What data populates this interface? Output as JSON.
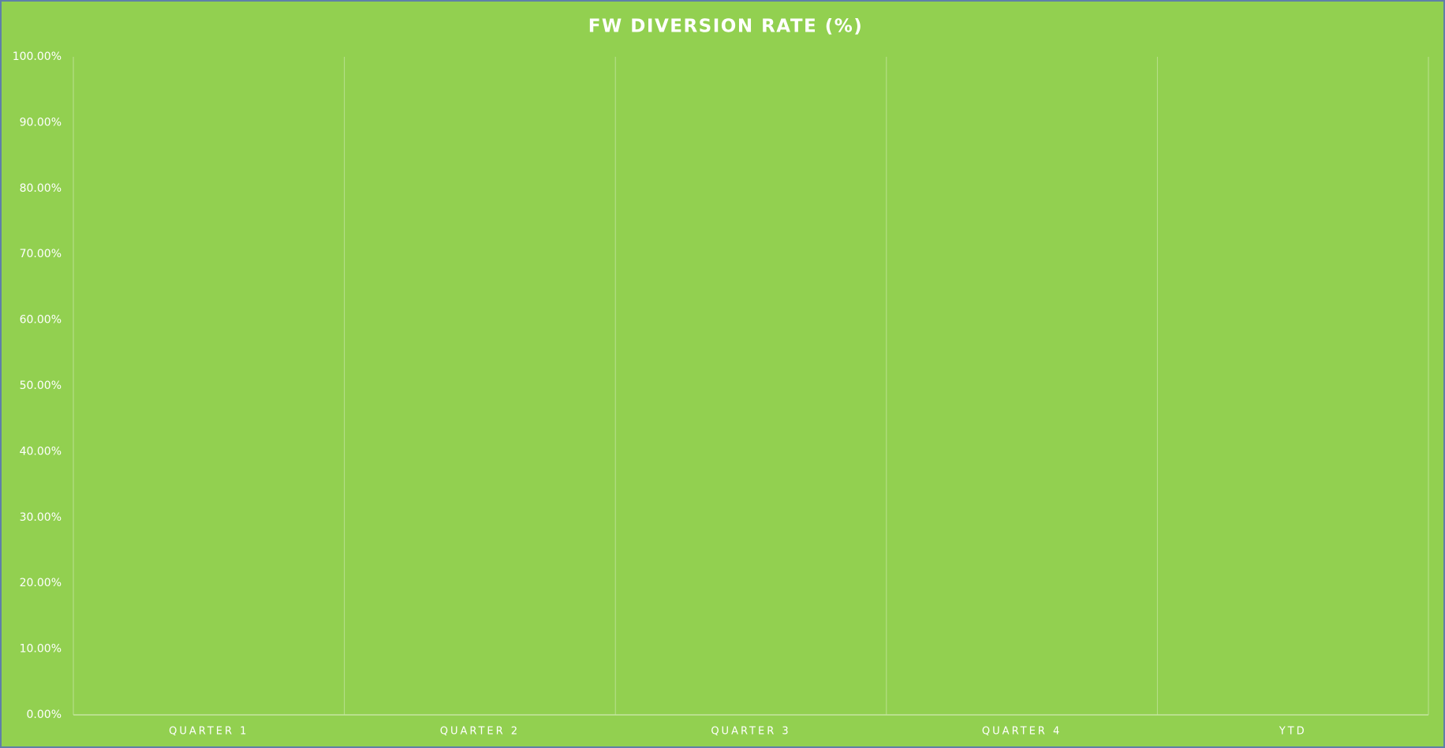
{
  "chart_data": {
    "type": "bar",
    "title": "FW DIVERSION RATE (%)",
    "categories": [
      "QUARTER 1",
      "QUARTER 2",
      "QUARTER 3",
      "QUARTER 4",
      "YTD"
    ],
    "ylim": [
      0,
      100
    ],
    "yticks": [
      {
        "value": 0,
        "label": "0.00%"
      },
      {
        "value": 10,
        "label": "10.00%"
      },
      {
        "value": 20,
        "label": "20.00%"
      },
      {
        "value": 30,
        "label": "30.00%"
      },
      {
        "value": 40,
        "label": "40.00%"
      },
      {
        "value": 50,
        "label": "50.00%"
      },
      {
        "value": 60,
        "label": "60.00%"
      },
      {
        "value": 70,
        "label": "70.00%"
      },
      {
        "value": 80,
        "label": "80.00%"
      },
      {
        "value": 90,
        "label": "90.00%"
      },
      {
        "value": 100,
        "label": "100.00%"
      }
    ],
    "background": "#92d050"
  }
}
